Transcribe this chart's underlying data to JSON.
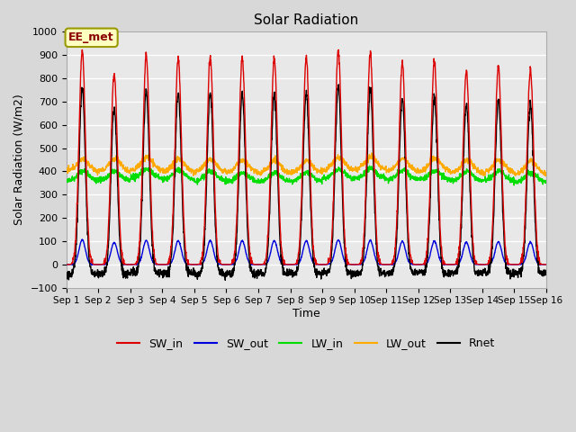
{
  "title": "Solar Radiation",
  "xlabel": "Time",
  "ylabel": "Solar Radiation (W/m2)",
  "ylim": [
    -100,
    1000
  ],
  "annotation": "EE_met",
  "x_tick_labels": [
    "Sep 1",
    "Sep 2",
    "Sep 3",
    "Sep 4",
    "Sep 5",
    "Sep 6",
    "Sep 7",
    "Sep 8",
    "Sep 9",
    "Sep 10",
    "Sep 11",
    "Sep 12",
    "Sep 13",
    "Sep 14",
    "Sep 15",
    "Sep 16"
  ],
  "series": {
    "SW_in": {
      "color": "#dd0000",
      "linewidth": 1.0
    },
    "SW_out": {
      "color": "#0000dd",
      "linewidth": 1.0
    },
    "LW_in": {
      "color": "#00dd00",
      "linewidth": 1.0
    },
    "LW_out": {
      "color": "#ffaa00",
      "linewidth": 1.0
    },
    "Rnet": {
      "color": "#000000",
      "linewidth": 1.0
    }
  },
  "fig_bg": "#d8d8d8",
  "ax_bg": "#e8e8e8",
  "grid_color": "#ffffff",
  "n_days": 15,
  "n_per_day": 144,
  "sw_in_peaks": [
    920,
    820,
    900,
    885,
    890,
    890,
    885,
    890,
    920,
    910,
    865,
    875,
    835,
    850,
    840
  ],
  "lw_in_base": [
    360,
    360,
    370,
    365,
    360,
    355,
    355,
    355,
    370,
    370,
    365,
    365,
    360,
    360,
    355
  ],
  "lw_out_base": [
    400,
    400,
    405,
    400,
    398,
    395,
    393,
    393,
    405,
    408,
    400,
    400,
    395,
    395,
    390
  ]
}
